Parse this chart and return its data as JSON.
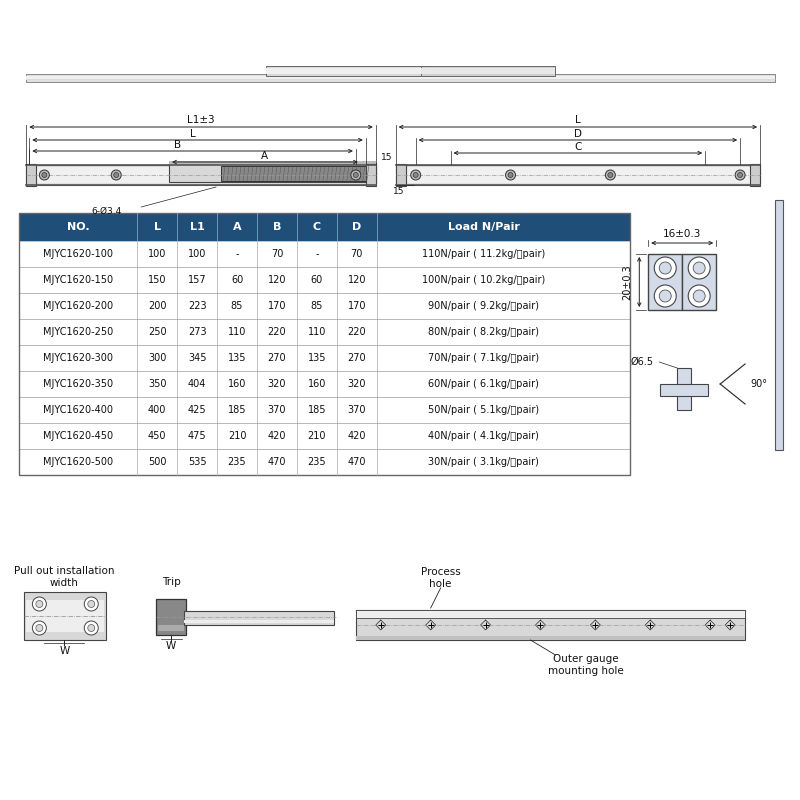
{
  "table_headers": [
    "NO.",
    "L",
    "L1",
    "A",
    "B",
    "C",
    "D",
    "Load N/Pair"
  ],
  "table_rows": [
    [
      "MJYC1620-100",
      "100",
      "100",
      "-",
      "70",
      "-",
      "70",
      "110N/pair ( 11.2kg/付pair)"
    ],
    [
      "MJYC1620-150",
      "150",
      "157",
      "60",
      "120",
      "60",
      "120",
      "100N/pair ( 10.2kg/付pair)"
    ],
    [
      "MJYC1620-200",
      "200",
      "223",
      "85",
      "170",
      "85",
      "170",
      "90N/pair ( 9.2kg/付pair)"
    ],
    [
      "MJYC1620-250",
      "250",
      "273",
      "110",
      "220",
      "110",
      "220",
      "80N/pair ( 8.2kg/付pair)"
    ],
    [
      "MJYC1620-300",
      "300",
      "345",
      "135",
      "270",
      "135",
      "270",
      "70N/pair ( 7.1kg/付pair)"
    ],
    [
      "MJYC1620-350",
      "350",
      "404",
      "160",
      "320",
      "160",
      "320",
      "60N/pair ( 6.1kg/付pair)"
    ],
    [
      "MJYC1620-400",
      "400",
      "425",
      "185",
      "370",
      "185",
      "370",
      "50N/pair ( 5.1kg/付pair)"
    ],
    [
      "MJYC1620-450",
      "450",
      "475",
      "210",
      "420",
      "210",
      "420",
      "40N/pair ( 4.1kg/付pair)"
    ],
    [
      "MJYC1620-500",
      "500",
      "535",
      "235",
      "470",
      "235",
      "470",
      "30N/pair ( 3.1kg/付pair)"
    ]
  ],
  "header_bg": "#1f4e79",
  "header_fg": "#ffffff",
  "row_bg": "#ffffff",
  "grid_color": "#aaaaaa",
  "bg_color": "#ffffff",
  "dim_label_16": "16±0.3",
  "dim_label_20": "20±0.3",
  "dim_label_65": "Ø6.5",
  "dim_label_90": "90°",
  "annotation_hole": "Process\nhole",
  "annotation_outer": "Outer gauge\nmounting hole",
  "annotation_pullout": "Pull out installation\nwidth",
  "annotation_trip": "Trip",
  "label_6_034": "6-Ø3.4",
  "label_15": "15",
  "label_L1": "L1±3",
  "label_L": "L",
  "label_B": "B",
  "label_A": "A",
  "label_D": "D",
  "label_C": "C",
  "label_W": "W"
}
